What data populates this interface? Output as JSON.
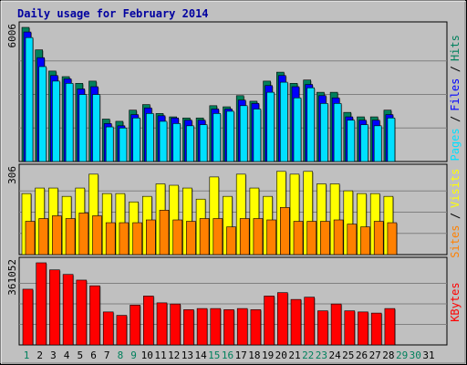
{
  "chart_data": {
    "type": "bar",
    "title": "Daily usage for February 2014",
    "days": [
      "1",
      "2",
      "3",
      "4",
      "5",
      "6",
      "7",
      "8",
      "9",
      "10",
      "11",
      "12",
      "13",
      "14",
      "15",
      "16",
      "17",
      "18",
      "19",
      "20",
      "21",
      "22",
      "23",
      "24",
      "25",
      "26",
      "27",
      "28",
      "29",
      "30",
      "31"
    ],
    "weekend_days": [
      1,
      8,
      9,
      15,
      16,
      22,
      23,
      29,
      30
    ],
    "weekend_color": "#00805c",
    "weekday_color": "#000000",
    "panels": [
      {
        "id": "top",
        "axis_max_label": "6006",
        "ymax": 6006,
        "series": [
          {
            "name": "Hits",
            "color": "#00805c",
            "values": [
              6006,
              5000,
              4050,
              3800,
              3500,
              3600,
              1900,
              1800,
              2300,
              2550,
              2150,
              2000,
              1950,
              1950,
              2500,
              2450,
              2950,
              2700,
              3600,
              4000,
              3500,
              3650,
              3100,
              3100,
              2200,
              2000,
              2000,
              2300
            ]
          },
          {
            "name": "Files",
            "color": "#0000ff",
            "values": [
              5800,
              4650,
              3850,
              3700,
              3250,
              3350,
              1700,
              1600,
              2100,
              2400,
              2050,
              1950,
              1850,
              1850,
              2350,
              2350,
              2750,
              2600,
              3400,
              3850,
              3350,
              3450,
              2950,
              2850,
              2000,
              1850,
              1850,
              2100
            ]
          },
          {
            "name": "Pages",
            "color": "#00e0ff",
            "values": [
              5550,
              4250,
              3600,
              3500,
              3000,
              3000,
              1550,
              1500,
              1950,
              2150,
              1800,
              1700,
              1600,
              1650,
              2150,
              2250,
              2500,
              2350,
              3100,
              3550,
              2850,
              3300,
              2600,
              2600,
              1850,
              1650,
              1600,
              1950
            ]
          }
        ],
        "legend_vertical": [
          "Pages",
          "/",
          "Files",
          "/",
          "Hits"
        ],
        "legend_colors": [
          "#00e0ff",
          "#000000",
          "#0000ff",
          "#000000",
          "#00805c"
        ]
      },
      {
        "id": "middle",
        "axis_max_label": "306",
        "ymax": 306,
        "series": [
          {
            "name": "Visits",
            "color": "#ffff00",
            "values": [
              220,
              240,
              240,
              210,
              240,
              290,
              220,
              220,
              190,
              210,
              255,
              250,
              240,
              200,
              280,
              210,
              290,
              240,
              210,
              300,
              290,
              300,
              255,
              255,
              230,
              220,
              220,
              210
            ]
          },
          {
            "name": "Sites",
            "color": "#ff8000",
            "values": [
              120,
              130,
              140,
              130,
              150,
              140,
              115,
              115,
              115,
              125,
              160,
              125,
              120,
              130,
              130,
              100,
              130,
              130,
              125,
              170,
              120,
              120,
              120,
              125,
              110,
              100,
              120,
              115
            ]
          }
        ],
        "legend_vertical": [
          "Sites",
          "/",
          "Visits"
        ],
        "legend_colors": [
          "#ff8000",
          "#000000",
          "#ffff00"
        ]
      },
      {
        "id": "bottom",
        "axis_max_label": "361052",
        "ymax": 361052,
        "series": [
          {
            "name": "KBytes",
            "color": "#ff0000",
            "values": [
              245000,
              361052,
              330000,
              310000,
              285000,
              260000,
              145000,
              130000,
              175000,
              215000,
              185000,
              180000,
              155000,
              160000,
              160000,
              155000,
              160000,
              155000,
              215000,
              230000,
              200000,
              210000,
              150000,
              180000,
              150000,
              145000,
              140000,
              160000
            ]
          }
        ],
        "legend_vertical": [
          "KBytes"
        ],
        "legend_colors": [
          "#ff0000"
        ]
      }
    ]
  }
}
